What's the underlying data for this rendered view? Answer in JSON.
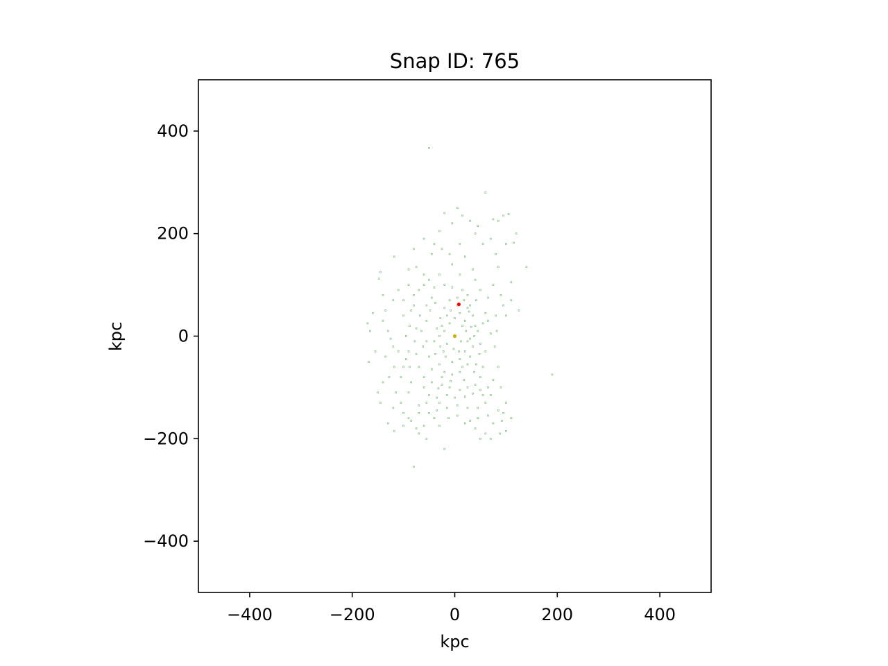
{
  "chart_data": {
    "type": "scatter",
    "title": "Snap ID: 765",
    "xlabel": "kpc",
    "ylabel": "kpc",
    "xlim": [
      -500,
      500
    ],
    "ylim": [
      -500,
      500
    ],
    "xticks": [
      -400,
      -200,
      0,
      200,
      400
    ],
    "yticks": [
      -400,
      -200,
      0,
      200,
      400
    ],
    "xtick_labels": [
      "−400",
      "−200",
      "0",
      "200",
      "400"
    ],
    "ytick_labels": [
      "−400",
      "−200",
      "0",
      "200",
      "400"
    ],
    "grid": false,
    "aspect": "equal",
    "series": [
      {
        "color": "#008000",
        "marker": "small square, low opacity",
        "points": [
          [
            -50,
            367
          ],
          [
            60,
            280
          ],
          [
            5,
            250
          ],
          [
            -20,
            240
          ],
          [
            15,
            235
          ],
          [
            -5,
            220
          ],
          [
            30,
            225
          ],
          [
            45,
            215
          ],
          [
            75,
            228
          ],
          [
            85,
            225
          ],
          [
            95,
            235
          ],
          [
            105,
            238
          ],
          [
            120,
            200
          ],
          [
            115,
            182
          ],
          [
            -60,
            190
          ],
          [
            -40,
            180
          ],
          [
            -25,
            170
          ],
          [
            -80,
            170
          ],
          [
            -10,
            160
          ],
          [
            20,
            155
          ],
          [
            -60,
            120
          ],
          [
            -75,
            135
          ],
          [
            -145,
            125
          ],
          [
            -148,
            112
          ],
          [
            -118,
            155
          ],
          [
            -90,
            130
          ],
          [
            -5,
            140
          ],
          [
            10,
            120
          ],
          [
            35,
            130
          ],
          [
            85,
            135
          ],
          [
            140,
            135
          ],
          [
            110,
            105
          ],
          [
            125,
            50
          ],
          [
            100,
            40
          ],
          [
            90,
            80
          ],
          [
            -160,
            45
          ],
          [
            -170,
            25
          ],
          [
            -165,
            10
          ],
          [
            -155,
            -30
          ],
          [
            -168,
            -50
          ],
          [
            -135,
            50
          ],
          [
            -140,
            30
          ],
          [
            -130,
            10
          ],
          [
            -125,
            -5
          ],
          [
            -135,
            -40
          ],
          [
            -120,
            -20
          ],
          [
            -118,
            -60
          ],
          [
            -128,
            -80
          ],
          [
            -115,
            -110
          ],
          [
            -120,
            -140
          ],
          [
            -105,
            -130
          ],
          [
            -100,
            -150
          ],
          [
            -90,
            -160
          ],
          [
            -85,
            -165
          ],
          [
            -75,
            -180
          ],
          [
            -70,
            -190
          ],
          [
            -60,
            -175
          ],
          [
            -50,
            -150
          ],
          [
            -40,
            -160
          ],
          [
            -30,
            -130
          ],
          [
            -20,
            -220
          ],
          [
            -80,
            -255
          ],
          [
            190,
            -75
          ],
          [
            70,
            -200
          ],
          [
            100,
            -185
          ],
          [
            95,
            -150
          ],
          [
            100,
            -130
          ],
          [
            -55,
            -200
          ],
          [
            60,
            -190
          ],
          [
            40,
            -180
          ],
          [
            30,
            -165
          ],
          [
            75,
            -170
          ],
          [
            85,
            -145
          ],
          [
            -105,
            -80
          ],
          [
            -95,
            -45
          ],
          [
            -95,
            0
          ],
          [
            -100,
            40
          ],
          [
            -100,
            70
          ],
          [
            -80,
            60
          ],
          [
            -70,
            90
          ],
          [
            -60,
            100
          ],
          [
            -40,
            95
          ],
          [
            -20,
            100
          ],
          [
            -5,
            95
          ],
          [
            15,
            90
          ],
          [
            25,
            80
          ],
          [
            30,
            60
          ],
          [
            35,
            40
          ],
          [
            40,
            20
          ],
          [
            38,
            0
          ],
          [
            35,
            -20
          ],
          [
            30,
            -40
          ],
          [
            25,
            -55
          ],
          [
            10,
            -70
          ],
          [
            -5,
            -75
          ],
          [
            -20,
            -70
          ],
          [
            -30,
            -55
          ],
          [
            -38,
            -35
          ],
          [
            -40,
            -10
          ],
          [
            -35,
            15
          ],
          [
            -28,
            35
          ],
          [
            -20,
            55
          ],
          [
            -10,
            70
          ],
          [
            5,
            75
          ],
          [
            18,
            70
          ],
          [
            25,
            55
          ],
          [
            -15,
            40
          ],
          [
            -25,
            20
          ],
          [
            -30,
            0
          ],
          [
            -28,
            -20
          ],
          [
            -18,
            -40
          ],
          [
            -5,
            -50
          ],
          [
            10,
            -45
          ],
          [
            20,
            -30
          ],
          [
            25,
            -10
          ],
          [
            22,
            10
          ],
          [
            20,
            30
          ],
          [
            10,
            45
          ],
          [
            45,
            10
          ],
          [
            50,
            -15
          ],
          [
            48,
            -35
          ],
          [
            42,
            -55
          ],
          [
            55,
            25
          ],
          [
            60,
            45
          ],
          [
            65,
            30
          ],
          [
            70,
            5
          ],
          [
            60,
            -30
          ],
          [
            55,
            -60
          ],
          [
            50,
            -80
          ],
          [
            40,
            -95
          ],
          [
            25,
            -100
          ],
          [
            10,
            -105
          ],
          [
            -10,
            -100
          ],
          [
            -25,
            -95
          ],
          [
            -45,
            -90
          ],
          [
            -60,
            -80
          ],
          [
            -70,
            -60
          ],
          [
            -75,
            -35
          ],
          [
            -78,
            -10
          ],
          [
            -75,
            15
          ],
          [
            -68,
            40
          ],
          [
            -55,
            60
          ],
          [
            -45,
            75
          ],
          [
            -65,
            10
          ],
          [
            -55,
            -10
          ],
          [
            -50,
            -40
          ],
          [
            -60,
            -100
          ],
          [
            -50,
            -115
          ],
          [
            -35,
            -120
          ],
          [
            -15,
            -115
          ],
          [
            0,
            -120
          ],
          [
            20,
            -118
          ],
          [
            35,
            -112
          ],
          [
            50,
            -105
          ],
          [
            65,
            -100
          ],
          [
            70,
            -115
          ],
          [
            60,
            -130
          ],
          [
            45,
            -140
          ],
          [
            25,
            -140
          ],
          [
            5,
            -135
          ],
          [
            -15,
            -140
          ],
          [
            -35,
            -145
          ],
          [
            -55,
            -130
          ],
          [
            -70,
            -135
          ],
          [
            -90,
            -110
          ],
          [
            -85,
            -90
          ],
          [
            -88,
            -60
          ],
          [
            -90,
            -30
          ],
          [
            -88,
            20
          ],
          [
            -85,
            50
          ],
          [
            -80,
            80
          ],
          [
            80,
            40
          ],
          [
            82,
            10
          ],
          [
            78,
            -20
          ],
          [
            85,
            -60
          ],
          [
            95,
            60
          ],
          [
            110,
            70
          ],
          [
            75,
            100
          ],
          [
            65,
            75
          ],
          [
            50,
            90
          ],
          [
            40,
            110
          ],
          [
            -30,
            120
          ],
          [
            -50,
            110
          ],
          [
            -90,
            100
          ],
          [
            -110,
            90
          ],
          [
            -120,
            70
          ],
          [
            -140,
            80
          ],
          [
            -110,
            -30
          ],
          [
            -100,
            -60
          ],
          [
            -140,
            -90
          ],
          [
            -150,
            -110
          ],
          [
            -130,
            -170
          ],
          [
            -145,
            -130
          ],
          [
            -20,
            10
          ],
          [
            -10,
            25
          ],
          [
            0,
            35
          ],
          [
            15,
            20
          ],
          [
            12,
            -10
          ],
          [
            -2,
            -25
          ],
          [
            -15,
            -15
          ],
          [
            5,
            60
          ],
          [
            -8,
            50
          ],
          [
            28,
            48
          ],
          [
            32,
            18
          ],
          [
            30,
            -5
          ],
          [
            15,
            -60
          ],
          [
            -25,
            -80
          ],
          [
            -45,
            -65
          ],
          [
            -55,
            30
          ],
          [
            -62,
            -20
          ],
          [
            -48,
            50
          ],
          [
            -38,
            65
          ],
          [
            42,
            70
          ],
          [
            -22,
            -30
          ],
          [
            8,
            -30
          ],
          [
            38,
            -70
          ],
          [
            18,
            -85
          ],
          [
            -8,
            -88
          ],
          [
            -32,
            -102
          ],
          [
            55,
            -115
          ],
          [
            75,
            -85
          ],
          [
            90,
            -100
          ],
          [
            -70,
            -150
          ],
          [
            -100,
            -175
          ],
          [
            -118,
            -185
          ],
          [
            20,
            -170
          ],
          [
            5,
            -155
          ],
          [
            -12,
            -160
          ],
          [
            -30,
            -175
          ],
          [
            45,
            -160
          ],
          [
            65,
            -155
          ],
          [
            92,
            -165
          ],
          [
            110,
            -160
          ],
          [
            88,
            -190
          ],
          [
            50,
            -200
          ],
          [
            80,
            160
          ],
          [
            100,
            180
          ],
          [
            70,
            190
          ],
          [
            40,
            200
          ],
          [
            55,
            180
          ],
          [
            -30,
            205
          ],
          [
            -45,
            160
          ],
          [
            10,
            180
          ]
        ]
      },
      {
        "color": "#ff0000",
        "marker": "dot",
        "points": [
          [
            8,
            62
          ]
        ]
      },
      {
        "color": "#c8b400",
        "marker": "dot",
        "points": [
          [
            0,
            0
          ]
        ]
      }
    ]
  }
}
